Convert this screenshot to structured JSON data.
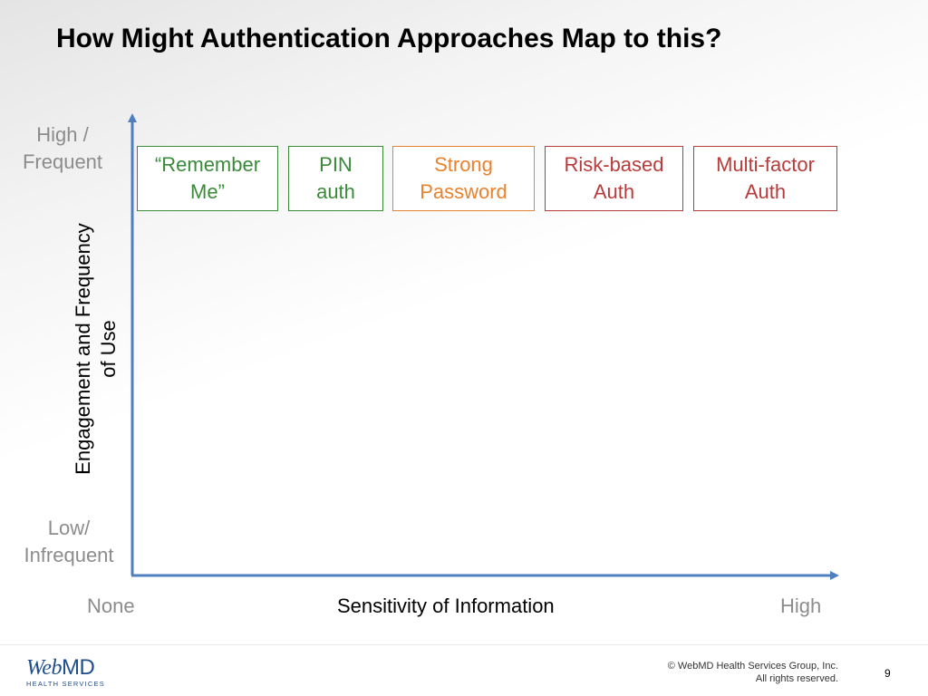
{
  "title": "How Might Authentication Approaches Map to this?",
  "y_axis": {
    "label_line1": "Engagement and Frequency",
    "label_line2": "of Use",
    "high_line1": "High /",
    "high_line2": "Frequent",
    "low_line1": "Low/",
    "low_line2": "Infrequent"
  },
  "x_axis": {
    "label": "Sensitivity of Information",
    "low": "None",
    "high": "High"
  },
  "boxes": [
    {
      "line1": "“Remember",
      "line2": "Me”",
      "color": "#3a8a3a"
    },
    {
      "line1": "PIN",
      "line2": "auth",
      "color": "#3a8a3a"
    },
    {
      "line1": "Strong",
      "line2": "Password",
      "color": "#e8822e"
    },
    {
      "line1": "Risk-based",
      "line2": "Auth",
      "color": "#b83b3b"
    },
    {
      "line1": "Multi-factor",
      "line2": "Auth",
      "color": "#b83b3b"
    }
  ],
  "colors": {
    "axis": "#4f7fbf"
  },
  "footer": {
    "logo_part1": "Web",
    "logo_part2": "MD",
    "logo_sub": "HEALTH SERVICES",
    "copyright_line1": "© WebMD Health Services Group, Inc.",
    "copyright_line2": "All rights reserved.",
    "page_number": "9"
  }
}
